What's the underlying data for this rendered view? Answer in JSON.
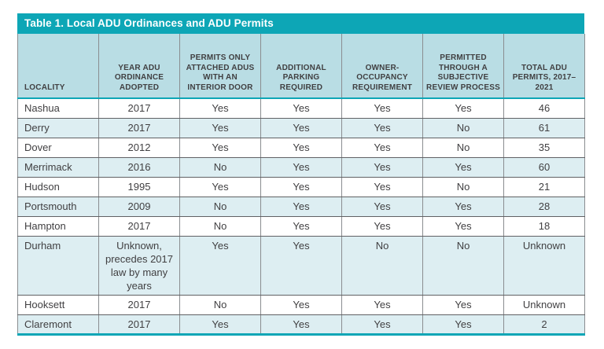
{
  "table": {
    "title": "Table 1. Local ADU Ordinances and ADU Permits",
    "columns": [
      "LOCALITY",
      "YEAR ADU ORDINANCE ADOPTED",
      "PERMITS ONLY ATTACHED ADUs WITH AN INTERIOR DOOR",
      "ADDITIONAL PARKING REQUIRED",
      "OWNER-OCCUPANCY REQUIREMENT",
      "PERMITTED THROUGH A SUBJECTIVE REVIEW PROCESS",
      "TOTAL ADU PERMITS, 2017–2021"
    ],
    "rows": [
      [
        "Nashua",
        "2017",
        "Yes",
        "Yes",
        "Yes",
        "Yes",
        "46"
      ],
      [
        "Derry",
        "2017",
        "Yes",
        "Yes",
        "Yes",
        "No",
        "61"
      ],
      [
        "Dover",
        "2012",
        "Yes",
        "Yes",
        "Yes",
        "No",
        "35"
      ],
      [
        "Merrimack",
        "2016",
        "No",
        "Yes",
        "Yes",
        "Yes",
        "60"
      ],
      [
        "Hudson",
        "1995",
        "Yes",
        "Yes",
        "Yes",
        "No",
        "21"
      ],
      [
        "Portsmouth",
        "2009",
        "No",
        "Yes",
        "Yes",
        "Yes",
        "28"
      ],
      [
        "Hampton",
        "2017",
        "No",
        "Yes",
        "Yes",
        "Yes",
        "18"
      ],
      [
        "Durham",
        "Unknown, precedes 2017 law by many years",
        "Yes",
        "Yes",
        "No",
        "No",
        "Unknown"
      ],
      [
        "Hooksett",
        "2017",
        "No",
        "Yes",
        "Yes",
        "Yes",
        "Unknown"
      ],
      [
        "Claremont",
        "2017",
        "Yes",
        "Yes",
        "Yes",
        "Yes",
        "2"
      ]
    ],
    "colors": {
      "teal_accent": "#0da6b6",
      "header_background": "#b9dde4",
      "stripe_background": "#ddeef2",
      "text": "#414042"
    }
  },
  "chart_data": {
    "type": "table",
    "title": "Table 1. Local ADU Ordinances and ADU Permits",
    "columns": [
      "LOCALITY",
      "YEAR ADU ORDINANCE ADOPTED",
      "PERMITS ONLY ATTACHED ADUs WITH AN INTERIOR DOOR",
      "ADDITIONAL PARKING REQUIRED",
      "OWNER-OCCUPANCY REQUIREMENT",
      "PERMITTED THROUGH A SUBJECTIVE REVIEW PROCESS",
      "TOTAL ADU PERMITS, 2017–2021"
    ],
    "rows": [
      {
        "locality": "Nashua",
        "year_adopted": "2017",
        "permits_only_attached": "Yes",
        "additional_parking": "Yes",
        "owner_occupancy": "Yes",
        "subjective_review": "Yes",
        "total_permits_2017_2021": "46"
      },
      {
        "locality": "Derry",
        "year_adopted": "2017",
        "permits_only_attached": "Yes",
        "additional_parking": "Yes",
        "owner_occupancy": "Yes",
        "subjective_review": "No",
        "total_permits_2017_2021": "61"
      },
      {
        "locality": "Dover",
        "year_adopted": "2012",
        "permits_only_attached": "Yes",
        "additional_parking": "Yes",
        "owner_occupancy": "Yes",
        "subjective_review": "No",
        "total_permits_2017_2021": "35"
      },
      {
        "locality": "Merrimack",
        "year_adopted": "2016",
        "permits_only_attached": "No",
        "additional_parking": "Yes",
        "owner_occupancy": "Yes",
        "subjective_review": "Yes",
        "total_permits_2017_2021": "60"
      },
      {
        "locality": "Hudson",
        "year_adopted": "1995",
        "permits_only_attached": "Yes",
        "additional_parking": "Yes",
        "owner_occupancy": "Yes",
        "subjective_review": "No",
        "total_permits_2017_2021": "21"
      },
      {
        "locality": "Portsmouth",
        "year_adopted": "2009",
        "permits_only_attached": "No",
        "additional_parking": "Yes",
        "owner_occupancy": "Yes",
        "subjective_review": "Yes",
        "total_permits_2017_2021": "28"
      },
      {
        "locality": "Hampton",
        "year_adopted": "2017",
        "permits_only_attached": "No",
        "additional_parking": "Yes",
        "owner_occupancy": "Yes",
        "subjective_review": "Yes",
        "total_permits_2017_2021": "18"
      },
      {
        "locality": "Durham",
        "year_adopted": "Unknown, precedes 2017 law by many years",
        "permits_only_attached": "Yes",
        "additional_parking": "Yes",
        "owner_occupancy": "No",
        "subjective_review": "No",
        "total_permits_2017_2021": "Unknown"
      },
      {
        "locality": "Hooksett",
        "year_adopted": "2017",
        "permits_only_attached": "No",
        "additional_parking": "Yes",
        "owner_occupancy": "Yes",
        "subjective_review": "Yes",
        "total_permits_2017_2021": "Unknown"
      },
      {
        "locality": "Claremont",
        "year_adopted": "2017",
        "permits_only_attached": "Yes",
        "additional_parking": "Yes",
        "owner_occupancy": "Yes",
        "subjective_review": "Yes",
        "total_permits_2017_2021": "2"
      }
    ]
  }
}
